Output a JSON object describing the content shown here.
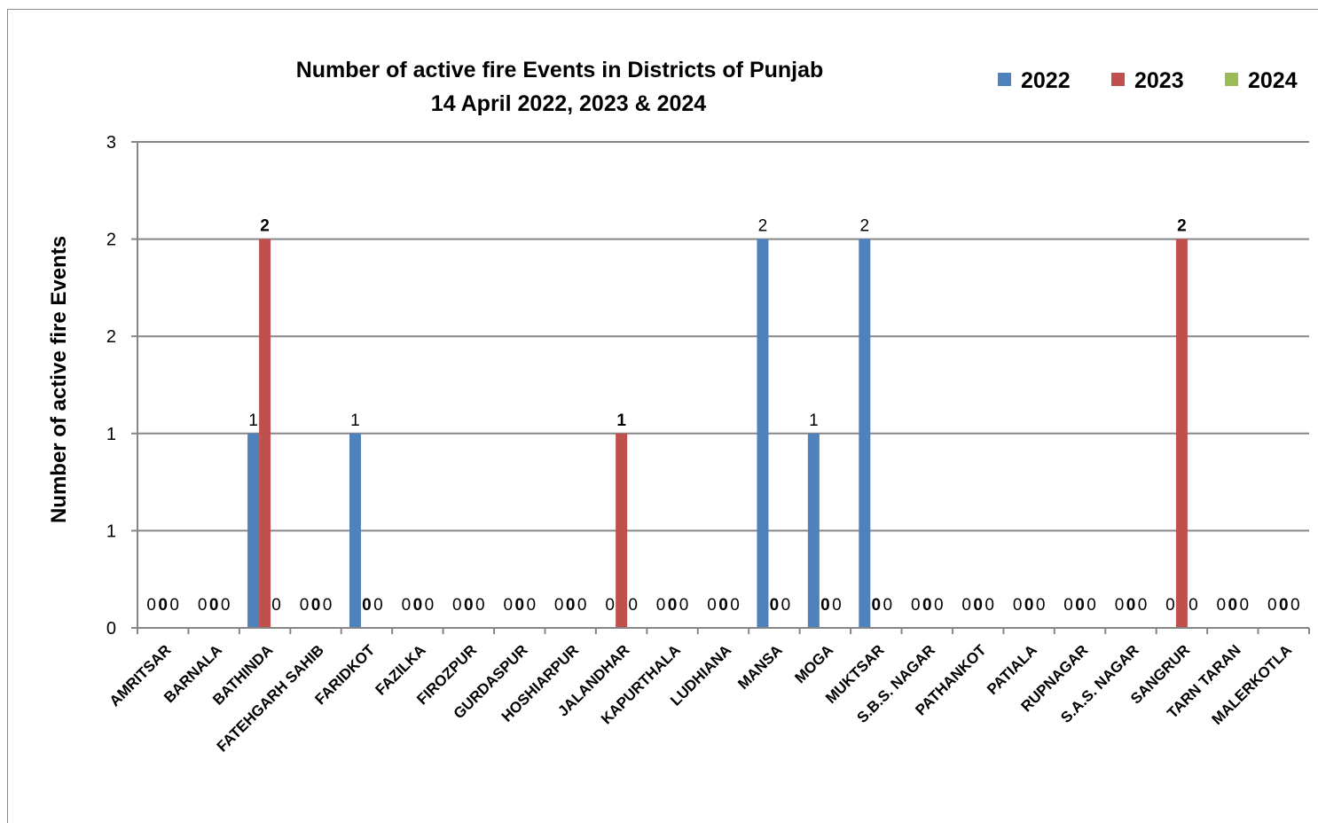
{
  "chart_data": {
    "type": "bar",
    "title_line1": "Number of active fire Events in Districts of Punjab",
    "title_line2": "14 April 2022, 2023 & 2024",
    "ylabel": "Number of active fire Events",
    "xlabel": "",
    "ylim": [
      0,
      2.5
    ],
    "yticks": [
      0,
      0.5,
      1,
      1.5,
      2,
      2.5
    ],
    "ytick_labels": [
      "0",
      "1",
      "1",
      "2",
      "2",
      "3"
    ],
    "grid": true,
    "legend_position": "top-right",
    "categories": [
      "AMRITSAR",
      "BARNALA",
      "BATHINDA",
      "FATEHGARH SAHIB",
      "FARIDKOT",
      "FAZILKA",
      "FIROZPUR",
      "GURDASPUR",
      "HOSHIARPUR",
      "JALANDHAR",
      "KAPURTHALA",
      "LUDHIANA",
      "MANSA",
      "MOGA",
      "MUKTSAR",
      "S.B.S. NAGAR",
      "PATHANKOT",
      "PATIALA",
      "RUPNAGAR",
      "S.A.S. NAGAR",
      "SANGRUR",
      "TARN TARAN",
      "MALERKOTLA"
    ],
    "series": [
      {
        "name": "2022",
        "color": "#4f81bd",
        "label_bold": false,
        "values": [
          0,
          0,
          1,
          0,
          1,
          0,
          0,
          0,
          0,
          0,
          0,
          0,
          2,
          1,
          2,
          0,
          0,
          0,
          0,
          0,
          0,
          0,
          0
        ]
      },
      {
        "name": "2023",
        "color": "#c0504d",
        "label_bold": true,
        "values": [
          0,
          0,
          2,
          0,
          0,
          0,
          0,
          0,
          0,
          1,
          0,
          0,
          0,
          0,
          0,
          0,
          0,
          0,
          0,
          0,
          2,
          0,
          0
        ]
      },
      {
        "name": "2024",
        "color": "#9bbb59",
        "label_bold": false,
        "values": [
          0,
          0,
          0,
          0,
          0,
          0,
          0,
          0,
          0,
          0,
          0,
          0,
          0,
          0,
          0,
          0,
          0,
          0,
          0,
          0,
          0,
          0,
          0
        ]
      }
    ]
  }
}
